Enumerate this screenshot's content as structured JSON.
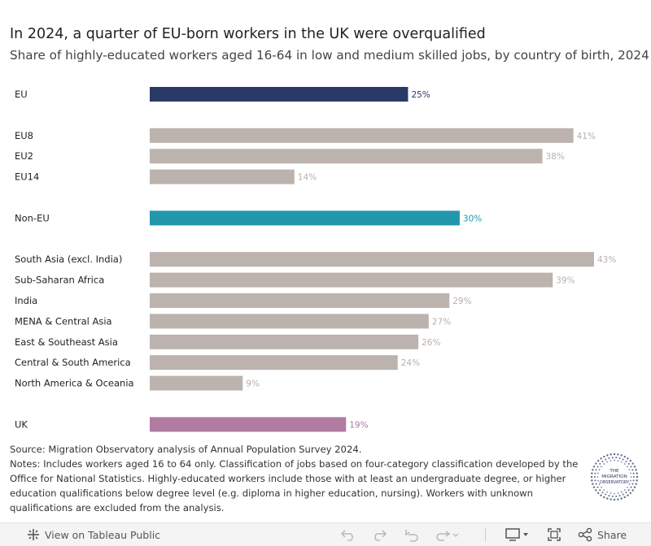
{
  "header": {
    "title": "In 2024, a quarter of EU-born workers in the UK were overqualified",
    "subtitle": "Share of highly-educated workers aged 16-64 in low and medium skilled jobs, by country of birth, 2024"
  },
  "chart_data": {
    "type": "bar",
    "orientation": "horizontal",
    "title": "In 2024, a quarter of EU-born workers in the UK were overqualified",
    "subtitle": "Share of highly-educated workers aged 16-64 in low and medium skilled jobs, by country of birth, 2024",
    "unit": "%",
    "xlim": [
      0,
      43
    ],
    "categories": [
      "EU",
      "EU8",
      "EU2",
      "EU14",
      "Non-EU",
      "South Asia (excl. India)",
      "Sub-Saharan Africa",
      "India",
      "MENA & Central Asia",
      "East & Southeast Asia",
      "Central & South America",
      "North America & Oceania",
      "UK"
    ],
    "values": [
      25,
      41,
      38,
      14,
      30,
      43,
      39,
      29,
      27,
      26,
      24,
      9,
      19
    ],
    "value_labels": [
      "25%",
      "41%",
      "38%",
      "14%",
      "30%",
      "43%",
      "39%",
      "29%",
      "27%",
      "26%",
      "24%",
      "9%",
      "19%"
    ],
    "groups": [
      0,
      1,
      1,
      1,
      2,
      3,
      3,
      3,
      3,
      3,
      3,
      3,
      4
    ],
    "bar_colors": [
      "#2a3a66",
      "#bcb2ae",
      "#bcb2ae",
      "#bcb2ae",
      "#2196ad",
      "#bcb2ae",
      "#bcb2ae",
      "#bcb2ae",
      "#bcb2ae",
      "#bcb2ae",
      "#bcb2ae",
      "#bcb2ae",
      "#b07ca2"
    ],
    "label_colors": [
      "#2a3a66",
      "#b8b0ad",
      "#b8b0ad",
      "#b8b0ad",
      "#2196ad",
      "#b8b0ad",
      "#b8b0ad",
      "#b8b0ad",
      "#b8b0ad",
      "#b8b0ad",
      "#b8b0ad",
      "#b8b0ad",
      "#b07ca2"
    ]
  },
  "notes": {
    "source": "Source: Migration Observatory analysis of Annual Population Survey 2024.",
    "notes": "Notes: Includes workers aged 16 to 64 only. Classification of jobs based on four-category classification developed by the Office for National Statistics. Highly-educated workers include those with at least an undergraduate degree, or higher education qualifications below degree level (e.g. diploma in higher education, nursing). Workers with unknown qualifications are excluded from the analysis."
  },
  "logo": {
    "line1": "THE",
    "line2": "MIGRATION",
    "line3": "OBSERVATORY",
    "color": "#2a3a66"
  },
  "footer": {
    "view_label": "View on Tableau Public",
    "share_label": "Share"
  }
}
